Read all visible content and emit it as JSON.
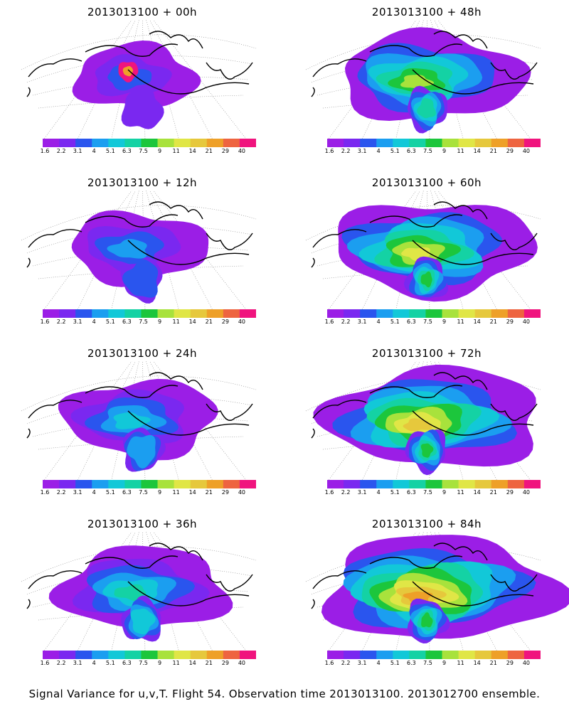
{
  "colorbar": {
    "labels": [
      "1.6",
      "2.2",
      "3.1",
      "4",
      "5.1",
      "6.3",
      "7.5",
      "9",
      "11",
      "14",
      "21",
      "29",
      "40"
    ],
    "colors": [
      "#9b1ee6",
      "#7a28f0",
      "#2a55ee",
      "#1b9ef0",
      "#12c8d8",
      "#14d2a4",
      "#1cc63c",
      "#a8e23c",
      "#e0e646",
      "#e6c83c",
      "#eea028",
      "#ee6440",
      "#f0147e"
    ]
  },
  "panels": [
    {
      "title": "2013013100 + 00h",
      "level": 0
    },
    {
      "title": "2013013100 + 48h",
      "level": 4
    },
    {
      "title": "2013013100 + 12h",
      "level": 1
    },
    {
      "title": "2013013100 + 60h",
      "level": 5
    },
    {
      "title": "2013013100 + 24h",
      "level": 2
    },
    {
      "title": "2013013100 + 72h",
      "level": 6
    },
    {
      "title": "2013013100 + 36h",
      "level": 3
    },
    {
      "title": "2013013100 + 84h",
      "level": 7
    }
  ],
  "caption": "Signal Variance for u,v,T. Flight 54. Observation time 2013013100. 2013012700 ensemble."
}
